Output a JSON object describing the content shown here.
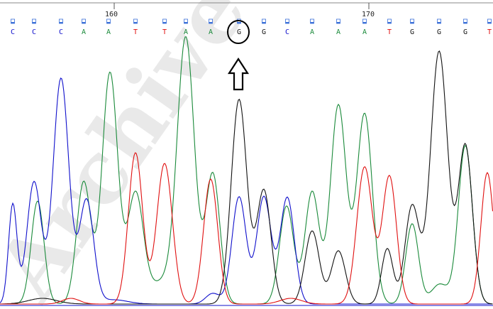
{
  "ruler": {
    "labels": [
      {
        "text": "160",
        "base_index": 5
      },
      {
        "text": "170",
        "base_index": 16
      }
    ]
  },
  "colors": {
    "A": "#1a8a3a",
    "C": "#1010cc",
    "G": "#111111",
    "T": "#e01010",
    "quality_box": "#3a6fd8"
  },
  "bases": [
    "C",
    "C",
    "C",
    "A",
    "A",
    "T",
    "T",
    "A",
    "A",
    "G",
    "G",
    "C",
    "A",
    "A",
    "A",
    "T",
    "G",
    "G",
    "G",
    "T"
  ],
  "highlight": {
    "base_index": 9,
    "marker": "circle",
    "arrow": "up-outline-arrow-icon"
  },
  "watermark": {
    "text": "Archive of SID"
  }
}
